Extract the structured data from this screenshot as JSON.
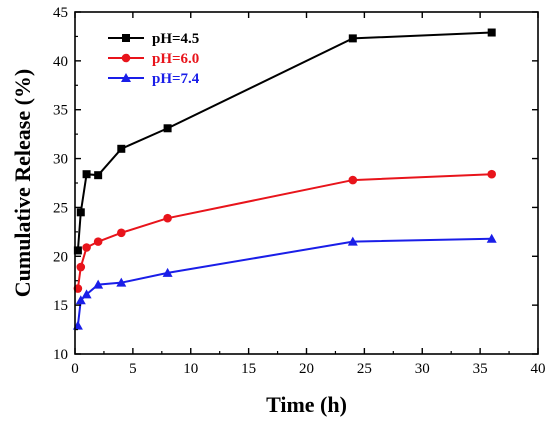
{
  "chart_data": {
    "type": "line",
    "xlabel": "Time (h)",
    "ylabel": "Cumulative Release (%)",
    "xlim": [
      0,
      40
    ],
    "ylim": [
      10,
      45
    ],
    "xticks": [
      0,
      5,
      10,
      15,
      20,
      25,
      30,
      35,
      40
    ],
    "yticks": [
      10,
      15,
      20,
      25,
      30,
      35,
      40,
      45
    ],
    "grid": false,
    "legend_position": "top-left",
    "series": [
      {
        "name": "pH=4.5",
        "color": "#000000",
        "marker": "square",
        "x": [
          0.25,
          0.5,
          1,
          2,
          4,
          8,
          24,
          36
        ],
        "y": [
          20.6,
          24.5,
          28.4,
          28.3,
          31.0,
          33.1,
          42.3,
          42.9
        ]
      },
      {
        "name": "pH=6.0",
        "color": "#e8141b",
        "marker": "circle",
        "x": [
          0.25,
          0.5,
          1,
          2,
          4,
          8,
          24,
          36
        ],
        "y": [
          16.7,
          18.9,
          20.9,
          21.5,
          22.4,
          23.9,
          27.8,
          28.4
        ]
      },
      {
        "name": "pH=7.4",
        "color": "#1a1ee8",
        "marker": "triangle",
        "x": [
          0.25,
          0.5,
          1,
          2,
          4,
          8,
          24,
          36
        ],
        "y": [
          12.9,
          15.5,
          16.1,
          17.1,
          17.3,
          18.3,
          21.5,
          21.8
        ]
      }
    ]
  }
}
